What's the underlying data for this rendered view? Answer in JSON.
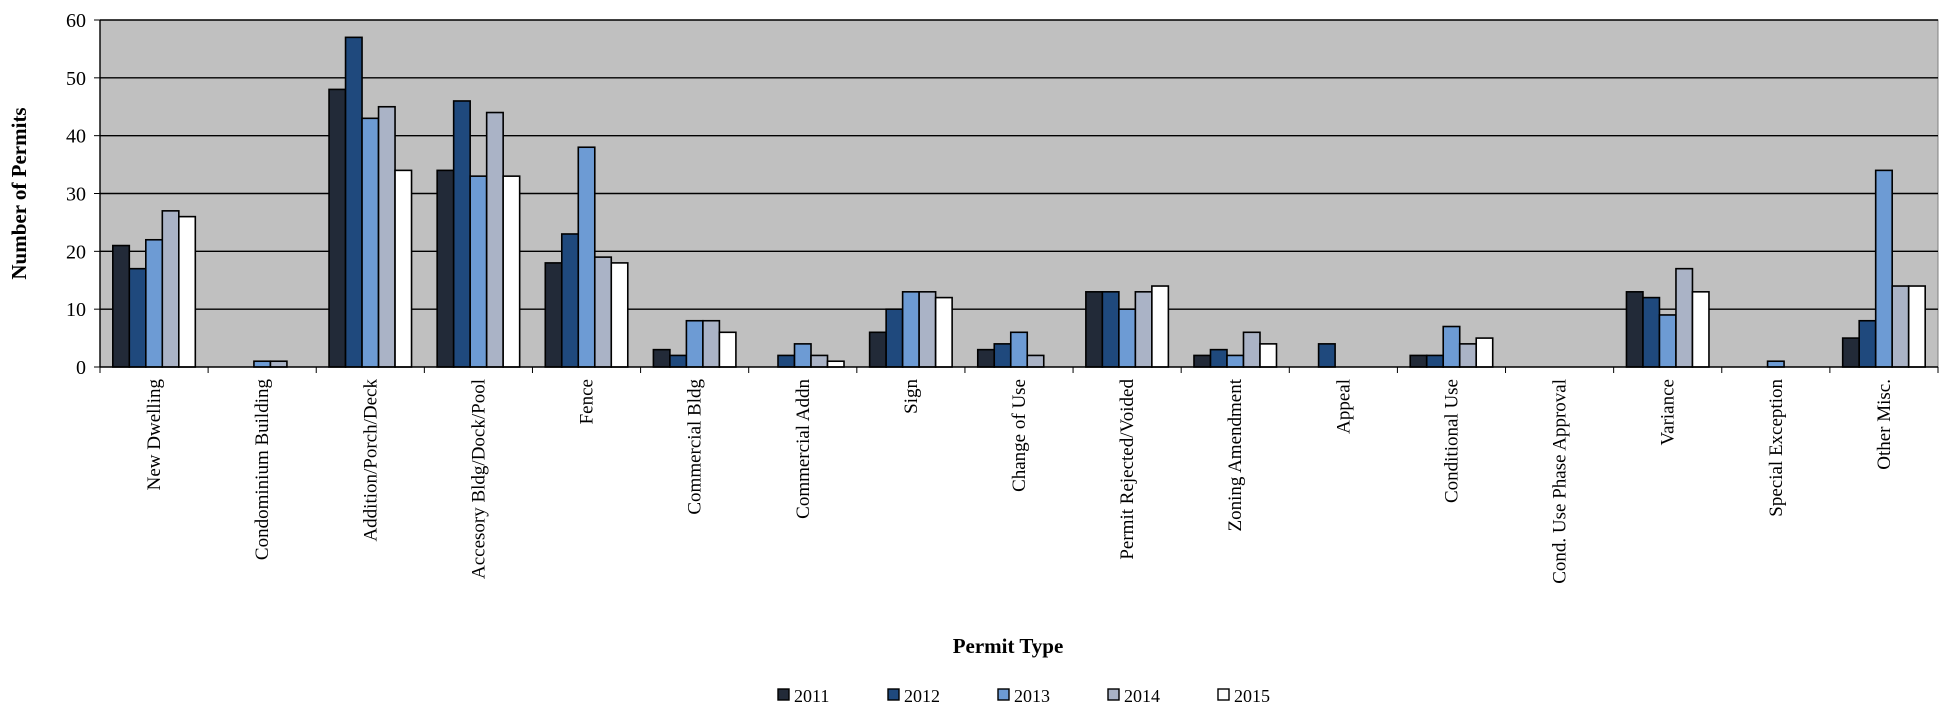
{
  "chart_data": {
    "type": "bar",
    "title": "",
    "xlabel": "Permit Type",
    "ylabel": "Number of Permits",
    "ylim": [
      0,
      60
    ],
    "yticks": [
      0,
      10,
      20,
      30,
      40,
      50,
      60
    ],
    "grid": true,
    "legend_position": "bottom",
    "plot_background": "#c0c0c0",
    "categories": [
      "New Dwelling",
      "Condominium Building",
      "Addition/Porch/Deck",
      "Accesory Bldg/Dock/Pool",
      "Fence",
      "Commercial Bldg",
      "Commercial Addn",
      "Sign",
      "Change of Use",
      "Permit Rejected/Voided",
      "Zoning Amendment",
      "Appeal",
      "Conditional Use",
      "Cond. Use Phase Approval",
      "Variance",
      "Special Exception",
      "Other Misc."
    ],
    "series": [
      {
        "name": "2011",
        "color": "#222a38",
        "values": [
          21,
          0,
          48,
          34,
          18,
          3,
          0,
          6,
          3,
          13,
          2,
          0,
          2,
          0,
          13,
          0,
          5
        ]
      },
      {
        "name": "2012",
        "color": "#1f497d",
        "values": [
          17,
          0,
          57,
          46,
          23,
          2,
          2,
          10,
          4,
          13,
          3,
          4,
          2,
          0,
          12,
          0,
          8
        ]
      },
      {
        "name": "2013",
        "color": "#6d9bd4",
        "values": [
          22,
          1,
          43,
          33,
          38,
          8,
          4,
          13,
          6,
          10,
          2,
          0,
          7,
          0,
          9,
          1,
          34
        ]
      },
      {
        "name": "2014",
        "color": "#aab3c6",
        "values": [
          27,
          1,
          45,
          44,
          19,
          8,
          2,
          13,
          2,
          13,
          6,
          0,
          4,
          0,
          17,
          0,
          14
        ]
      },
      {
        "name": "2015",
        "color": "#ffffff",
        "values": [
          26,
          0,
          34,
          33,
          18,
          6,
          1,
          12,
          0,
          14,
          4,
          0,
          5,
          0,
          13,
          0,
          14
        ]
      }
    ]
  }
}
